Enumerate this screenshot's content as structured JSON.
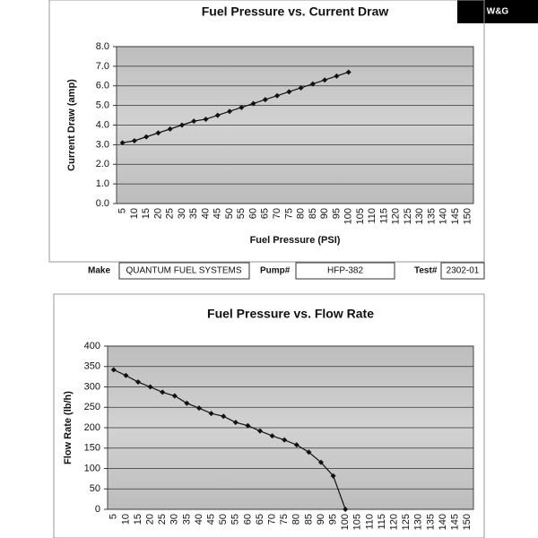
{
  "logo": "W&G",
  "form": {
    "make_label": "Make",
    "make": "QUANTUM FUEL SYSTEMS",
    "pump_label": "Pump#",
    "pump": "HFP-382",
    "test_label": "Test#",
    "test": "2302-01"
  },
  "chart_data": [
    {
      "type": "line",
      "title": "Fuel Pressure vs. Current Draw",
      "x_label": "Fuel Pressure (PSI)",
      "y_label": "Current Draw (amp)",
      "categories": [
        "5",
        "10",
        "15",
        "20",
        "25",
        "30",
        "35",
        "40",
        "45",
        "50",
        "55",
        "60",
        "65",
        "70",
        "75",
        "80",
        "85",
        "90",
        "95",
        "100",
        "105",
        "110",
        "115",
        "120",
        "125",
        "130",
        "135",
        "140",
        "145",
        "150"
      ],
      "values": [
        3.1,
        3.2,
        3.4,
        3.6,
        3.8,
        4.0,
        4.2,
        4.3,
        4.5,
        4.7,
        4.9,
        5.1,
        5.3,
        5.5,
        5.7,
        5.9,
        6.1,
        6.3,
        6.5,
        6.7,
        null,
        null,
        null,
        null,
        null,
        null,
        null,
        null,
        null,
        null
      ],
      "color": "#111111",
      "ylim": [
        0,
        8
      ],
      "yticks": [
        {
          "value": 0,
          "label": "0.0"
        },
        {
          "value": 1,
          "label": "1.0"
        },
        {
          "value": 2,
          "label": "2.0"
        },
        {
          "value": 3,
          "label": "3.0"
        },
        {
          "value": 4,
          "label": "4.0"
        },
        {
          "value": 5,
          "label": "5.0"
        },
        {
          "value": 6,
          "label": "6.0"
        },
        {
          "value": 7,
          "label": "7.0"
        },
        {
          "value": 8,
          "label": "8.0"
        }
      ],
      "grid": true
    },
    {
      "type": "line",
      "title": "Fuel Pressure vs. Flow Rate",
      "y_label": "Flow Rate (lb/h)",
      "categories": [
        "5",
        "10",
        "15",
        "20",
        "25",
        "30",
        "35",
        "40",
        "45",
        "50",
        "55",
        "60",
        "65",
        "70",
        "75",
        "80",
        "85",
        "90",
        "95",
        "100",
        "105",
        "110",
        "115",
        "120",
        "125",
        "130",
        "135",
        "140",
        "145",
        "150"
      ],
      "values": [
        342,
        328,
        312,
        300,
        287,
        278,
        260,
        248,
        235,
        228,
        213,
        205,
        192,
        180,
        170,
        158,
        140,
        115,
        82,
        0,
        null,
        null,
        null,
        null,
        null,
        null,
        null,
        null,
        null,
        null
      ],
      "color": "#111111",
      "ylim": [
        0,
        400
      ],
      "yticks": [
        0,
        50,
        100,
        150,
        200,
        250,
        300,
        350,
        400
      ],
      "grid": true
    }
  ]
}
